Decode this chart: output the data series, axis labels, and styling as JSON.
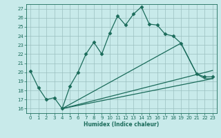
{
  "xlabel": "Humidex (Indice chaleur)",
  "xlim": [
    -0.5,
    23.5
  ],
  "ylim": [
    15.5,
    27.5
  ],
  "xticks": [
    0,
    1,
    2,
    3,
    4,
    5,
    6,
    7,
    8,
    9,
    10,
    11,
    12,
    13,
    14,
    15,
    16,
    17,
    18,
    19,
    20,
    21,
    22,
    23
  ],
  "yticks": [
    16,
    17,
    18,
    19,
    20,
    21,
    22,
    23,
    24,
    25,
    26,
    27
  ],
  "bg_color": "#c8eaea",
  "grid_color": "#9bbfbf",
  "line_color": "#1a6b5a",
  "lines": [
    {
      "x": [
        0,
        1,
        2,
        3,
        4,
        5,
        6,
        7,
        8,
        9,
        10,
        11,
        12,
        13,
        14,
        15,
        16,
        17,
        18,
        19,
        21,
        22,
        23
      ],
      "y": [
        20.1,
        18.3,
        17.0,
        17.2,
        16.0,
        18.5,
        20.0,
        22.0,
        23.3,
        22.0,
        24.3,
        26.2,
        25.2,
        26.4,
        27.2,
        25.3,
        25.2,
        24.2,
        24.0,
        23.2,
        19.8,
        19.5,
        19.5
      ],
      "marker": "D",
      "markersize": 2.5,
      "lw": 0.9
    },
    {
      "x": [
        4,
        19,
        20,
        21,
        22,
        23
      ],
      "y": [
        16.0,
        23.2,
        21.5,
        19.8,
        19.3,
        19.3
      ],
      "marker": null,
      "markersize": 0,
      "lw": 0.9
    },
    {
      "x": [
        4,
        23
      ],
      "y": [
        16.0,
        20.2
      ],
      "marker": null,
      "markersize": 0,
      "lw": 0.9
    },
    {
      "x": [
        4,
        23
      ],
      "y": [
        16.0,
        19.3
      ],
      "marker": null,
      "markersize": 0,
      "lw": 0.9
    }
  ]
}
